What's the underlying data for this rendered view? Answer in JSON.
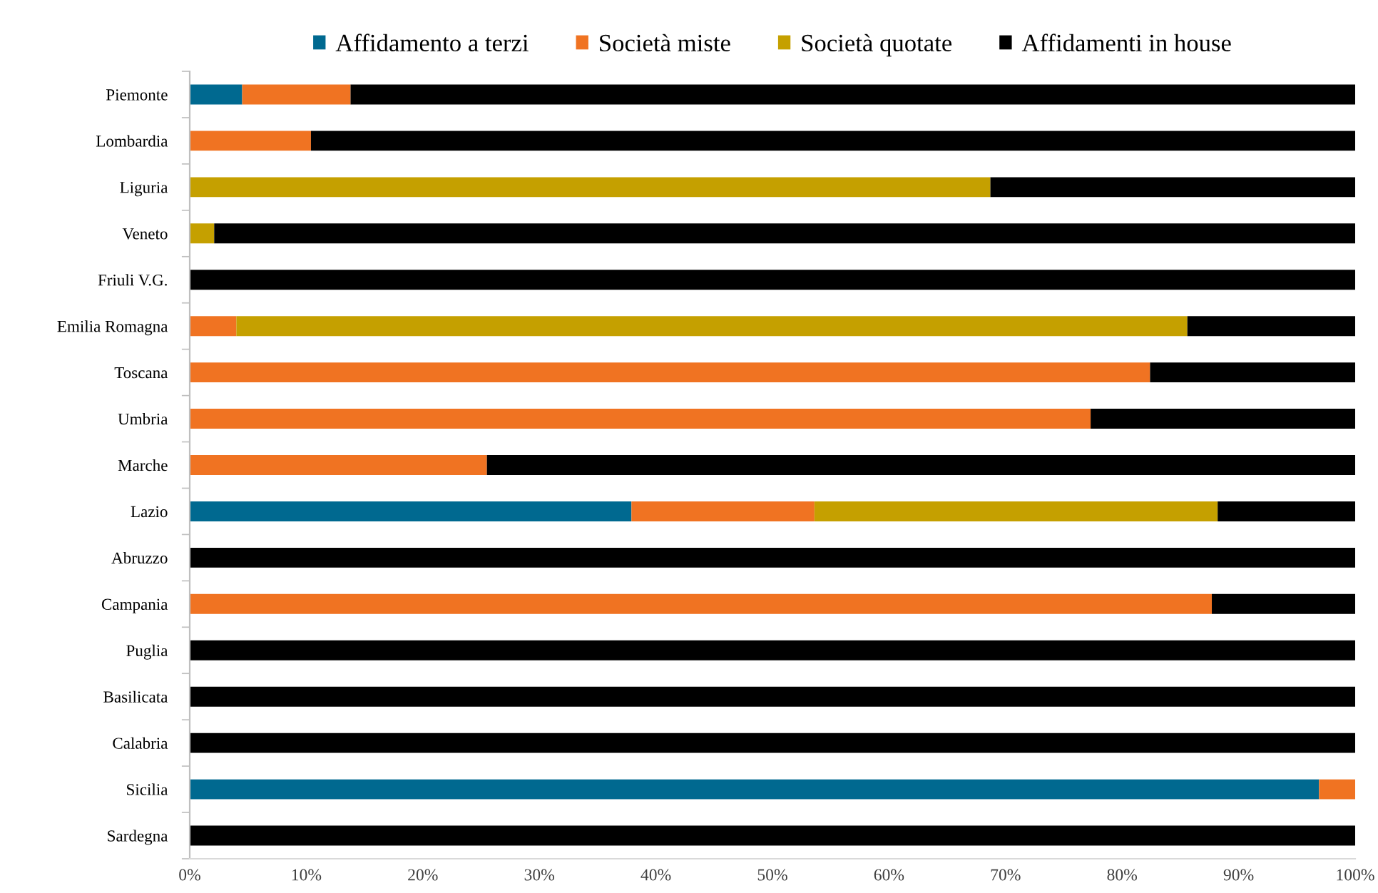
{
  "chart_data": {
    "type": "bar",
    "orientation": "horizontal",
    "stacked": true,
    "categories": [
      "Piemonte",
      "Lombardia",
      "Liguria",
      "Veneto",
      "Friuli V.G.",
      "Emilia Romagna",
      "Toscana",
      "Umbria",
      "Marche",
      "Lazio",
      "Abruzzo",
      "Campania",
      "Puglia",
      "Basilicata",
      "Calabria",
      "Sicilia",
      "Sardegna"
    ],
    "series": [
      {
        "name": "Affidamento a terzi",
        "color": "#006990",
        "values": [
          4.5,
          0,
          0,
          0,
          0,
          0,
          0,
          0,
          0,
          37.9,
          0,
          0,
          0,
          0,
          0,
          96.9,
          0
        ]
      },
      {
        "name": "Società miste",
        "color": "#f07322",
        "values": [
          9.3,
          10.4,
          0,
          0,
          0,
          4.0,
          82.4,
          77.3,
          25.5,
          15.7,
          0,
          87.7,
          0,
          0,
          0,
          3.1,
          0
        ]
      },
      {
        "name": "Società quotate",
        "color": "#c5a000",
        "values": [
          0,
          0,
          68.7,
          2.1,
          0,
          81.6,
          0,
          0,
          0,
          34.6,
          0,
          0,
          0,
          0,
          0,
          0,
          0
        ]
      },
      {
        "name": "Affidamenti in house",
        "color": "#000000",
        "values": [
          86.2,
          89.6,
          31.3,
          97.9,
          100,
          14.4,
          17.6,
          22.7,
          74.5,
          11.8,
          100,
          12.3,
          100,
          100,
          100,
          0,
          100
        ]
      }
    ],
    "xlim": [
      0,
      100
    ],
    "xticks": [
      {
        "value": 0,
        "label": "0%"
      },
      {
        "value": 10,
        "label": "10%"
      },
      {
        "value": 20,
        "label": "20%"
      },
      {
        "value": 30,
        "label": "30%"
      },
      {
        "value": 40,
        "label": "40%"
      },
      {
        "value": 50,
        "label": "50%"
      },
      {
        "value": 60,
        "label": "60%"
      },
      {
        "value": 70,
        "label": "70%"
      },
      {
        "value": 80,
        "label": "80%"
      },
      {
        "value": 90,
        "label": "90%"
      },
      {
        "value": 100,
        "label": "100%"
      }
    ],
    "grid": false,
    "legend": "top"
  }
}
